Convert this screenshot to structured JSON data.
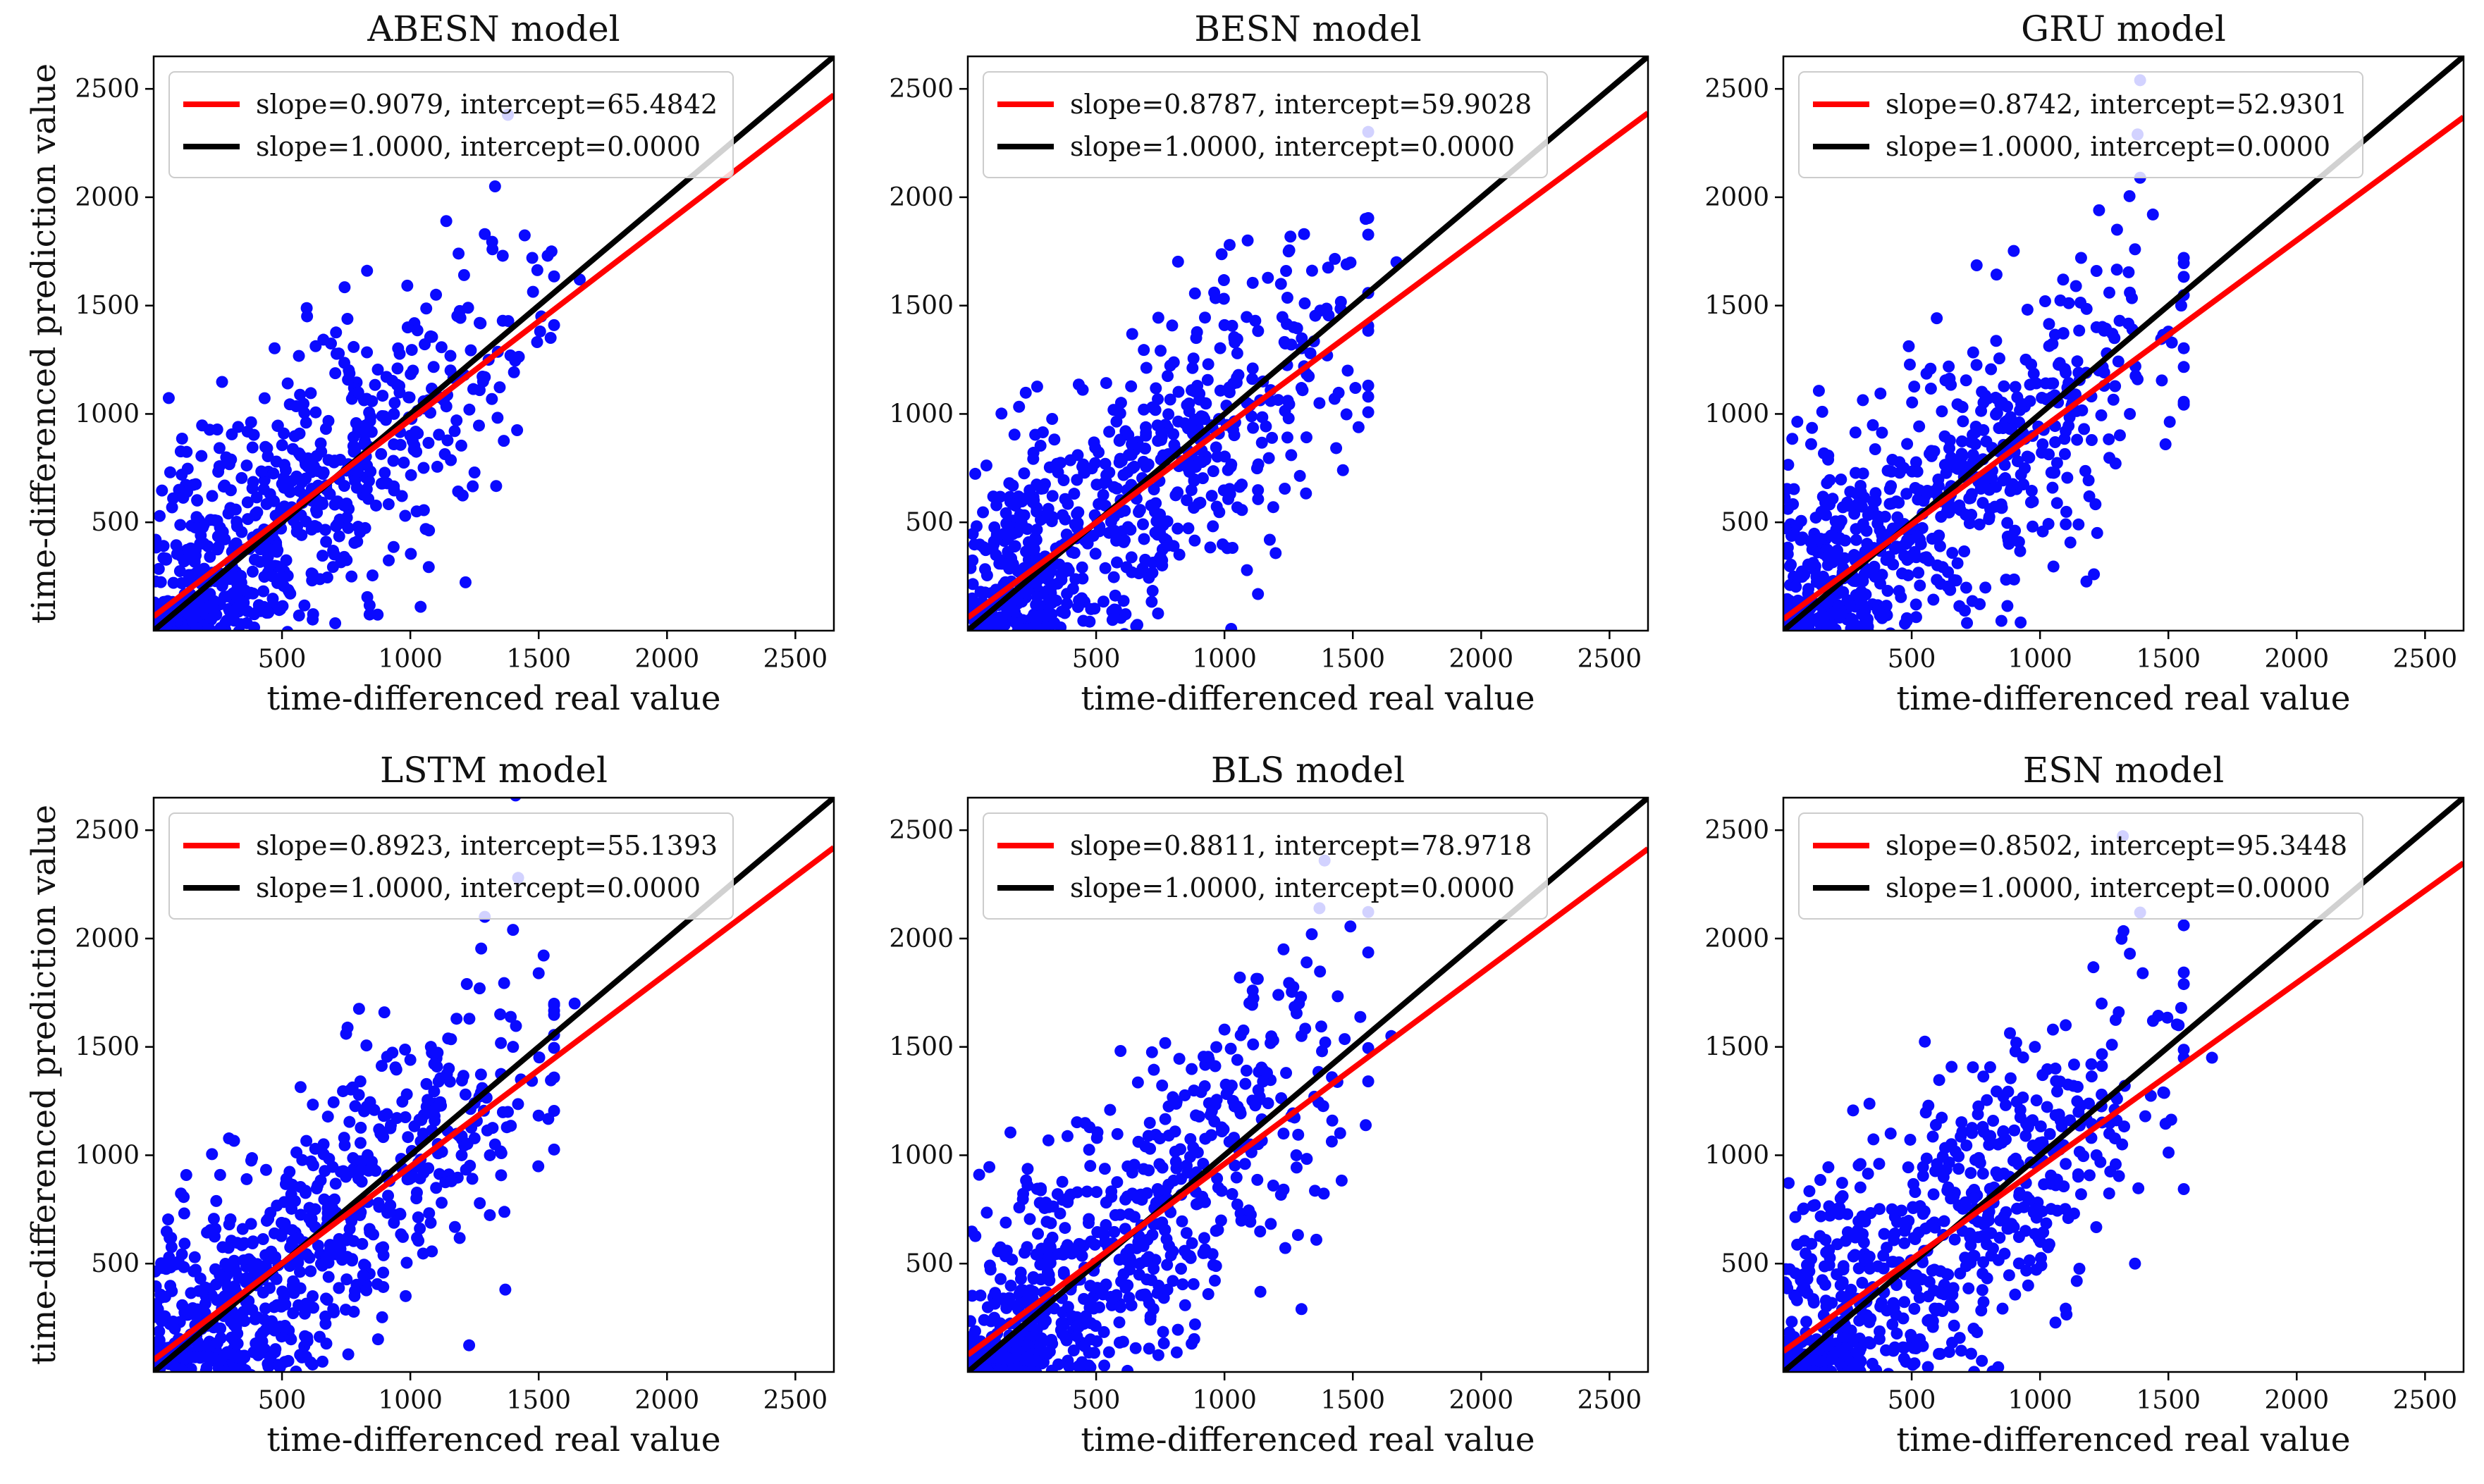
{
  "figure": {
    "ylabel_shared": "time-differenced prediction value"
  },
  "colors": {
    "points": "#0a0aff",
    "fit_line": "#ff0000",
    "ideal_line": "#000000",
    "axes": "#000000",
    "legend_border": "#cccccc"
  },
  "chart_data": [
    {
      "type": "scatter",
      "title": "ABESN model",
      "xlabel": "time-differenced real value",
      "ylabel": "time-differenced prediction value",
      "xlim": [
        0,
        2650
      ],
      "ylim": [
        0,
        2650
      ],
      "xticks": [
        500,
        1000,
        1500,
        2000,
        2500
      ],
      "yticks": [
        500,
        1000,
        1500,
        2000,
        2500
      ],
      "series": [
        {
          "name": "slope=0.9079, intercept=65.4842",
          "kind": "line",
          "slope": 0.9079,
          "intercept": 65.4842
        },
        {
          "name": "slope=1.0000, intercept=0.0000",
          "kind": "line",
          "slope": 1.0,
          "intercept": 0.0
        }
      ],
      "points": [
        [
          1100,
          1550
        ],
        [
          1290,
          1830
        ],
        [
          1000,
          900
        ],
        [
          1210,
          1180
        ],
        [
          1320,
          1760
        ],
        [
          820,
          860
        ],
        [
          1140,
          1890
        ],
        [
          1535,
          1730
        ],
        [
          1250,
          730
        ],
        [
          980,
          530
        ],
        [
          1040,
          110
        ],
        [
          1475,
          1720
        ],
        [
          1360,
          1430
        ],
        [
          1010,
          1200
        ],
        [
          1290,
          1170
        ],
        [
          1225,
          1490
        ],
        [
          950,
          1210
        ],
        [
          1305,
          1250
        ],
        [
          1230,
          1020
        ],
        [
          1360,
          1730
        ],
        [
          1270,
          1420
        ],
        [
          1550,
          1750
        ],
        [
          1380,
          2380
        ],
        [
          1660,
          1620
        ],
        [
          1390,
          1270
        ],
        [
          1330,
          2050
        ],
        [
          1510,
          1450
        ],
        [
          890,
          990
        ],
        [
          1180,
          970
        ],
        [
          1270,
          1110
        ]
      ]
    },
    {
      "type": "scatter",
      "title": "BESN model",
      "xlabel": "time-differenced real value",
      "ylabel": "",
      "xlim": [
        0,
        2650
      ],
      "ylim": [
        0,
        2650
      ],
      "xticks": [
        500,
        1000,
        1500,
        2000,
        2500
      ],
      "yticks": [
        500,
        1000,
        1500,
        2000,
        2500
      ],
      "series": [
        {
          "name": "slope=0.8787, intercept=59.9028",
          "kind": "line",
          "slope": 0.8787,
          "intercept": 59.9028
        },
        {
          "name": "slope=1.0000, intercept=0.0000",
          "kind": "line",
          "slope": 1.0,
          "intercept": 0.0
        }
      ],
      "points": [
        [
          1300,
          1120
        ],
        [
          1260,
          1320
        ],
        [
          1040,
          1330
        ],
        [
          1250,
          1750
        ],
        [
          1550,
          1900
        ],
        [
          1510,
          1120
        ],
        [
          1310,
          1220
        ],
        [
          1240,
          1660
        ],
        [
          1190,
          570
        ],
        [
          1020,
          1780
        ],
        [
          1560,
          1080
        ],
        [
          1100,
          1040
        ],
        [
          1220,
          1600
        ],
        [
          1310,
          1830
        ],
        [
          1670,
          1700
        ],
        [
          1480,
          1200
        ],
        [
          1400,
          1270
        ],
        [
          1335,
          1280
        ],
        [
          1260,
          810
        ],
        [
          1180,
          1060
        ],
        [
          1250,
          980
        ],
        [
          960,
          1560
        ],
        [
          1150,
          1150
        ],
        [
          1050,
          1280
        ],
        [
          1180,
          1110
        ],
        [
          1370,
          1050
        ],
        [
          1000,
          1410
        ],
        [
          1120,
          1430
        ],
        [
          1020,
          1100
        ],
        [
          1110,
          1210
        ]
      ]
    },
    {
      "type": "scatter",
      "title": "GRU model",
      "xlabel": "time-differenced real value",
      "ylabel": "",
      "xlim": [
        0,
        2650
      ],
      "ylim": [
        0,
        2650
      ],
      "xticks": [
        500,
        1000,
        1500,
        2000,
        2500
      ],
      "yticks": [
        500,
        1000,
        1500,
        2000,
        2500
      ],
      "series": [
        {
          "name": "slope=0.8742, intercept=52.9301",
          "kind": "line",
          "slope": 0.8742,
          "intercept": 52.9301
        },
        {
          "name": "slope=1.0000, intercept=0.0000",
          "kind": "line",
          "slope": 1.0,
          "intercept": 0.0
        }
      ],
      "points": [
        [
          1390,
          2540
        ],
        [
          1380,
          2290
        ],
        [
          1390,
          2090
        ],
        [
          1300,
          1850
        ],
        [
          1230,
          1940
        ],
        [
          1090,
          1620
        ],
        [
          1220,
          1660
        ],
        [
          1140,
          1590
        ],
        [
          1370,
          1760
        ],
        [
          1550,
          1500
        ],
        [
          1360,
          1390
        ],
        [
          1260,
          1280
        ],
        [
          1150,
          1190
        ],
        [
          1250,
          1130
        ],
        [
          1290,
          1350
        ],
        [
          1310,
          1430
        ],
        [
          1380,
          1160
        ],
        [
          1350,
          1000
        ],
        [
          1100,
          920
        ],
        [
          1010,
          860
        ],
        [
          1150,
          490
        ],
        [
          1210,
          260
        ],
        [
          1180,
          1190
        ],
        [
          1500,
          1380
        ],
        [
          1270,
          1560
        ],
        [
          1020,
          1520
        ],
        [
          1100,
          1190
        ],
        [
          1350,
          1560
        ],
        [
          1220,
          1400
        ],
        [
          1160,
          1720
        ]
      ]
    },
    {
      "type": "scatter",
      "title": "LSTM model",
      "xlabel": "time-differenced real value",
      "ylabel": "time-differenced prediction value",
      "xlim": [
        0,
        2650
      ],
      "ylim": [
        0,
        2650
      ],
      "xticks": [
        500,
        1000,
        1500,
        2000,
        2500
      ],
      "yticks": [
        500,
        1000,
        1500,
        2000,
        2500
      ],
      "series": [
        {
          "name": "slope=0.8923, intercept=55.1393",
          "kind": "line",
          "slope": 0.8923,
          "intercept": 55.1393
        },
        {
          "name": "slope=1.0000, intercept=0.0000",
          "kind": "line",
          "slope": 1.0,
          "intercept": 0.0
        }
      ],
      "points": [
        [
          1420,
          2280
        ],
        [
          1400,
          2040
        ],
        [
          1290,
          2100
        ],
        [
          1270,
          1770
        ],
        [
          1220,
          1790
        ],
        [
          1080,
          1500
        ],
        [
          1230,
          1630
        ],
        [
          1110,
          1340
        ],
        [
          1380,
          1200
        ],
        [
          1500,
          1840
        ],
        [
          1640,
          1700
        ],
        [
          1400,
          1500
        ],
        [
          1350,
          1650
        ],
        [
          1100,
          1220
        ],
        [
          1330,
          1050
        ],
        [
          1190,
          1090
        ],
        [
          1160,
          880
        ],
        [
          960,
          730
        ],
        [
          1370,
          380
        ],
        [
          1280,
          1310
        ],
        [
          1040,
          980
        ],
        [
          1000,
          1440
        ],
        [
          1250,
          1240
        ],
        [
          1310,
          1000
        ],
        [
          1150,
          1400
        ],
        [
          1070,
          940
        ],
        [
          1180,
          1630
        ],
        [
          1410,
          2660
        ],
        [
          1050,
          1100
        ],
        [
          1200,
          1000
        ]
      ]
    },
    {
      "type": "scatter",
      "title": "BLS model",
      "xlabel": "time-differenced real value",
      "ylabel": "",
      "xlim": [
        0,
        2650
      ],
      "ylim": [
        0,
        2650
      ],
      "xticks": [
        500,
        1000,
        1500,
        2000,
        2500
      ],
      "yticks": [
        500,
        1000,
        1500,
        2000,
        2500
      ],
      "series": [
        {
          "name": "slope=0.8811, intercept=78.9718",
          "kind": "line",
          "slope": 0.8811,
          "intercept": 78.9718
        },
        {
          "name": "slope=1.0000, intercept=0.0000",
          "kind": "line",
          "slope": 1.0,
          "intercept": 0.0
        }
      ],
      "points": [
        [
          1390,
          2360
        ],
        [
          1370,
          2140
        ],
        [
          1340,
          2020
        ],
        [
          1230,
          1950
        ],
        [
          1290,
          1700
        ],
        [
          1110,
          1760
        ],
        [
          1650,
          1550
        ],
        [
          1380,
          1480
        ],
        [
          1300,
          1550
        ],
        [
          1240,
          1380
        ],
        [
          1170,
          1240
        ],
        [
          1230,
          1100
        ],
        [
          1050,
          1440
        ],
        [
          990,
          1110
        ],
        [
          1190,
          860
        ],
        [
          1300,
          290
        ],
        [
          1140,
          370
        ],
        [
          1280,
          1000
        ],
        [
          1000,
          1580
        ],
        [
          1120,
          1230
        ],
        [
          1350,
          1270
        ],
        [
          1060,
          1820
        ],
        [
          1190,
          1530
        ],
        [
          1260,
          1180
        ],
        [
          1420,
          1160
        ],
        [
          1080,
          960
        ],
        [
          1150,
          1340
        ],
        [
          1320,
          1890
        ],
        [
          1210,
          1740
        ],
        [
          1100,
          1050
        ]
      ]
    },
    {
      "type": "scatter",
      "title": "ESN model",
      "xlabel": "time-differenced real value",
      "ylabel": "",
      "xlim": [
        0,
        2650
      ],
      "ylim": [
        0,
        2650
      ],
      "xticks": [
        500,
        1000,
        1500,
        2000,
        2500
      ],
      "yticks": [
        500,
        1000,
        1500,
        2000,
        2500
      ],
      "series": [
        {
          "name": "slope=0.8502, intercept=95.3448",
          "kind": "line",
          "slope": 0.8502,
          "intercept": 95.3448
        },
        {
          "name": "slope=1.0000, intercept=0.0000",
          "kind": "line",
          "slope": 1.0,
          "intercept": 0.0
        }
      ],
      "points": [
        [
          1390,
          2120
        ],
        [
          1350,
          1930
        ],
        [
          1400,
          1840
        ],
        [
          1100,
          1600
        ],
        [
          1240,
          1700
        ],
        [
          1440,
          1620
        ],
        [
          1550,
          1680
        ],
        [
          1670,
          1450
        ],
        [
          1280,
          1510
        ],
        [
          1200,
          1420
        ],
        [
          1130,
          1320
        ],
        [
          1320,
          1050
        ],
        [
          1410,
          1180
        ],
        [
          1010,
          1060
        ],
        [
          1150,
          1200
        ],
        [
          1060,
          1400
        ],
        [
          980,
          1500
        ],
        [
          1480,
          1290
        ],
        [
          1370,
          500
        ],
        [
          1240,
          1280
        ],
        [
          1100,
          960
        ],
        [
          1300,
          1260
        ],
        [
          1200,
          1080
        ],
        [
          1540,
          1600
        ],
        [
          1010,
          1370
        ],
        [
          1270,
          1100
        ],
        [
          1160,
          820
        ],
        [
          1080,
          1160
        ],
        [
          1330,
          1320
        ],
        [
          1220,
          1000
        ]
      ]
    }
  ]
}
